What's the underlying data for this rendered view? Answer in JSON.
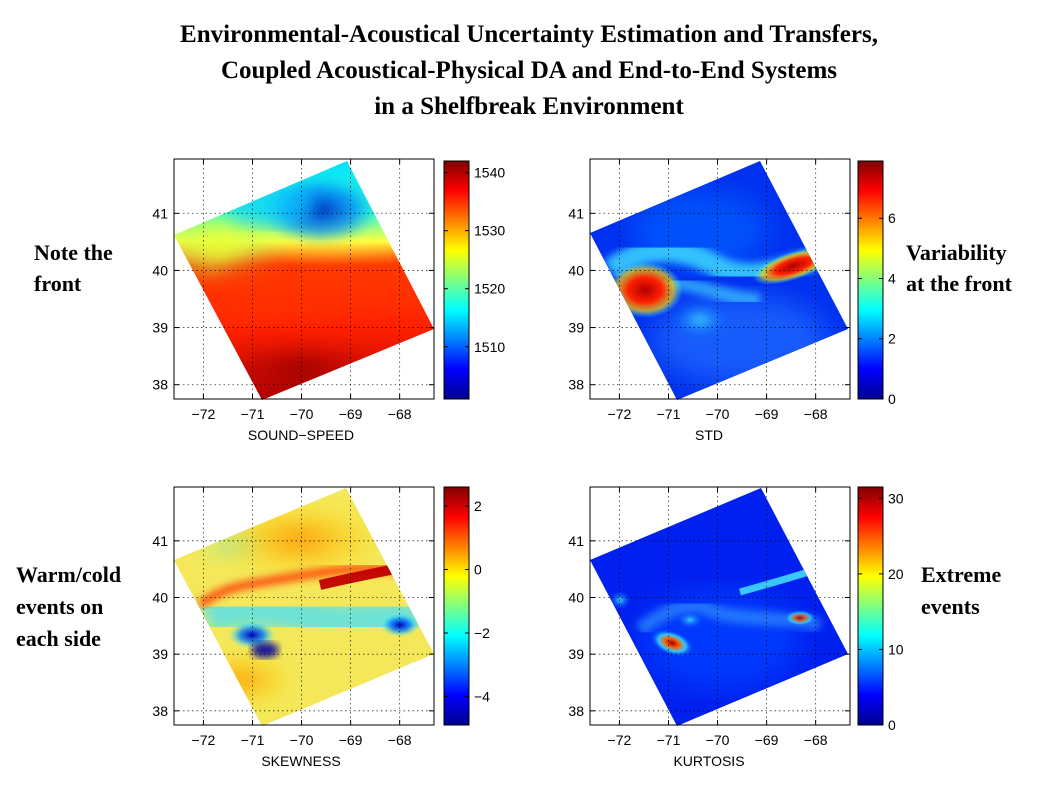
{
  "title": [
    "Environmental-Acoustical Uncertainty Estimation and Transfers,",
    "Coupled Acoustical-Physical DA and End-to-End Systems",
    "in a Shelfbreak Environment"
  ],
  "annotations": {
    "note_front": [
      "Note the",
      "front"
    ],
    "variability": [
      "Variability",
      "at the front"
    ],
    "warm_cold": [
      "Warm/cold",
      "events on",
      "each side"
    ],
    "extreme": [
      "Extreme",
      "events"
    ]
  },
  "colors": {
    "jet": [
      "#00008f",
      "#0000ff",
      "#0080ff",
      "#00ffff",
      "#80ff80",
      "#ffff00",
      "#ff8000",
      "#ff0000",
      "#800000"
    ]
  },
  "chart_data": [
    {
      "type": "heatmap",
      "id": "sound-speed",
      "xlabel": "SOUND−SPEED",
      "xticks": [
        "−72",
        "−71",
        "−70",
        "−69",
        "−68"
      ],
      "xtick_values": [
        -72,
        -71,
        -70,
        -69,
        -68
      ],
      "yticks": [
        "41",
        "40",
        "39",
        "38"
      ],
      "ytick_values": [
        41,
        40,
        39,
        38
      ],
      "xlim": [
        -72.6,
        -67.3
      ],
      "ylim": [
        37.75,
        41.95
      ],
      "colorbar": {
        "ticks": [
          "1540",
          "1530",
          "1520",
          "1510"
        ],
        "tick_values": [
          1540,
          1530,
          1520,
          1510
        ],
        "range": [
          1501,
          1542
        ]
      },
      "grid": true
    },
    {
      "type": "heatmap",
      "id": "std",
      "xlabel": "STD",
      "xticks": [
        "−72",
        "−71",
        "−70",
        "−69",
        "−68"
      ],
      "xtick_values": [
        -72,
        -71,
        -70,
        -69,
        -68
      ],
      "yticks": [
        "41",
        "40",
        "39",
        "38"
      ],
      "ytick_values": [
        41,
        40,
        39,
        38
      ],
      "xlim": [
        -72.6,
        -67.3
      ],
      "ylim": [
        37.75,
        41.95
      ],
      "colorbar": {
        "ticks": [
          "6",
          "4",
          "2",
          "0"
        ],
        "tick_values": [
          6,
          4,
          2,
          0
        ],
        "range": [
          0,
          7.9
        ]
      },
      "grid": true
    },
    {
      "type": "heatmap",
      "id": "skewness",
      "xlabel": "SKEWNESS",
      "xticks": [
        "−72",
        "−71",
        "−70",
        "−69",
        "−68"
      ],
      "xtick_values": [
        -72,
        -71,
        -70,
        -69,
        -68
      ],
      "yticks": [
        "41",
        "40",
        "39",
        "38"
      ],
      "ytick_values": [
        41,
        40,
        39,
        38
      ],
      "xlim": [
        -72.6,
        -67.3
      ],
      "ylim": [
        37.75,
        41.95
      ],
      "colorbar": {
        "ticks": [
          "2",
          "0",
          "−2",
          "−4"
        ],
        "tick_values": [
          2,
          0,
          -2,
          -4
        ],
        "range": [
          -4.9,
          2.6
        ]
      },
      "grid": true
    },
    {
      "type": "heatmap",
      "id": "kurtosis",
      "xlabel": "KURTOSIS",
      "xticks": [
        "−72",
        "−71",
        "−70",
        "−69",
        "−68"
      ],
      "xtick_values": [
        -72,
        -71,
        -70,
        -69,
        -68
      ],
      "yticks": [
        "41",
        "40",
        "39",
        "38"
      ],
      "ytick_values": [
        41,
        40,
        39,
        38
      ],
      "xlim": [
        -72.6,
        -67.3
      ],
      "ylim": [
        37.75,
        41.95
      ],
      "colorbar": {
        "ticks": [
          "30",
          "20",
          "10",
          "0"
        ],
        "tick_values": [
          30,
          20,
          10,
          0
        ],
        "range": [
          0,
          31.5
        ]
      },
      "grid": true
    }
  ]
}
